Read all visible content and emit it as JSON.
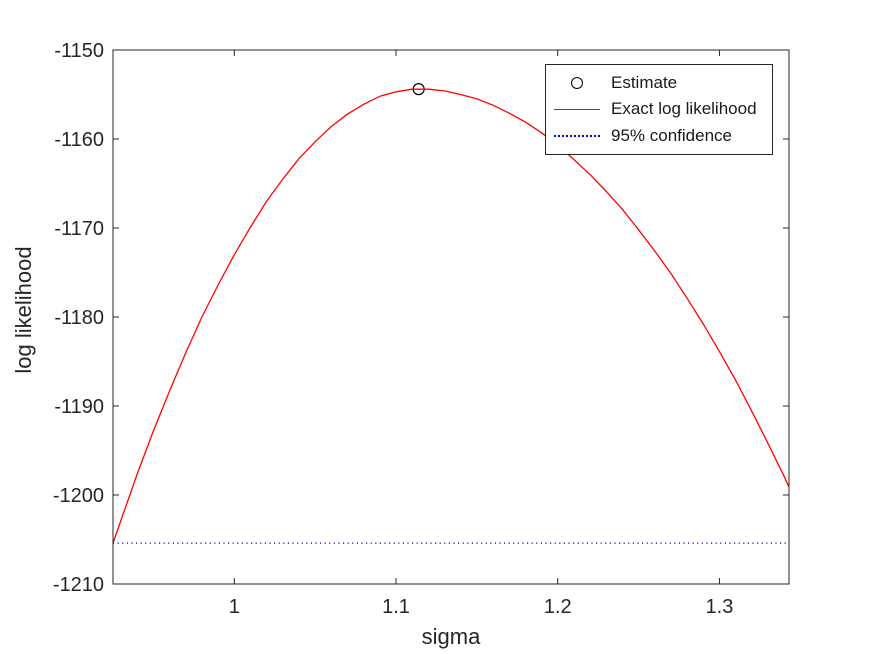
{
  "figure": {
    "background": "#ffffff",
    "axis_color": "#262626",
    "text_color": "#262626"
  },
  "chart_data": {
    "type": "line",
    "title": "",
    "xlabel": "sigma",
    "ylabel": "log likelihood",
    "xlim": [
      0.925,
      1.343
    ],
    "ylim": [
      -1210,
      -1150
    ],
    "grid": false,
    "xticks": {
      "values": [
        1,
        1.1,
        1.2,
        1.3
      ],
      "labels": [
        "1",
        "1.1",
        "1.2",
        "1.3"
      ]
    },
    "yticks": {
      "values": [
        -1210,
        -1200,
        -1190,
        -1180,
        -1170,
        -1160,
        -1150
      ],
      "labels": [
        "-1210",
        "-1200",
        "-1190",
        "-1180",
        "-1170",
        "-1160",
        "-1150"
      ]
    },
    "series": [
      {
        "name": "Estimate",
        "type": "scatter",
        "marker": "open-circle",
        "color": "#000000",
        "x": [
          1.114
        ],
        "y": [
          -1154.4
        ]
      },
      {
        "name": "Exact log likelihood",
        "type": "line",
        "style": "solid",
        "color": "#ff0000",
        "x": [
          0.925,
          0.93,
          0.94,
          0.95,
          0.96,
          0.97,
          0.98,
          0.99,
          1.0,
          1.01,
          1.02,
          1.03,
          1.04,
          1.05,
          1.06,
          1.07,
          1.08,
          1.09,
          1.1,
          1.11,
          1.114,
          1.12,
          1.13,
          1.14,
          1.15,
          1.16,
          1.17,
          1.18,
          1.19,
          1.2,
          1.21,
          1.22,
          1.23,
          1.24,
          1.25,
          1.26,
          1.27,
          1.28,
          1.29,
          1.3,
          1.31,
          1.32,
          1.33,
          1.34,
          1.343
        ],
        "y": [
          -1205.4,
          -1202.8,
          -1197.6,
          -1192.8,
          -1188.3,
          -1184.0,
          -1180.0,
          -1176.4,
          -1173.0,
          -1169.9,
          -1167.0,
          -1164.5,
          -1162.2,
          -1160.3,
          -1158.6,
          -1157.2,
          -1156.1,
          -1155.2,
          -1154.7,
          -1154.4,
          -1154.4,
          -1154.4,
          -1154.6,
          -1155.0,
          -1155.5,
          -1156.2,
          -1157.1,
          -1158.1,
          -1159.3,
          -1160.7,
          -1162.3,
          -1164.0,
          -1165.9,
          -1167.9,
          -1170.2,
          -1172.6,
          -1175.1,
          -1177.9,
          -1180.8,
          -1183.9,
          -1187.1,
          -1190.6,
          -1194.2,
          -1197.9,
          -1199.1
        ]
      },
      {
        "name": "95% confidence",
        "type": "line",
        "style": "dotted",
        "color": "#0000cd",
        "x": [
          0.925,
          1.343
        ],
        "y": [
          -1205.4,
          -1205.4
        ]
      }
    ],
    "legend": {
      "position": "top-right"
    }
  }
}
